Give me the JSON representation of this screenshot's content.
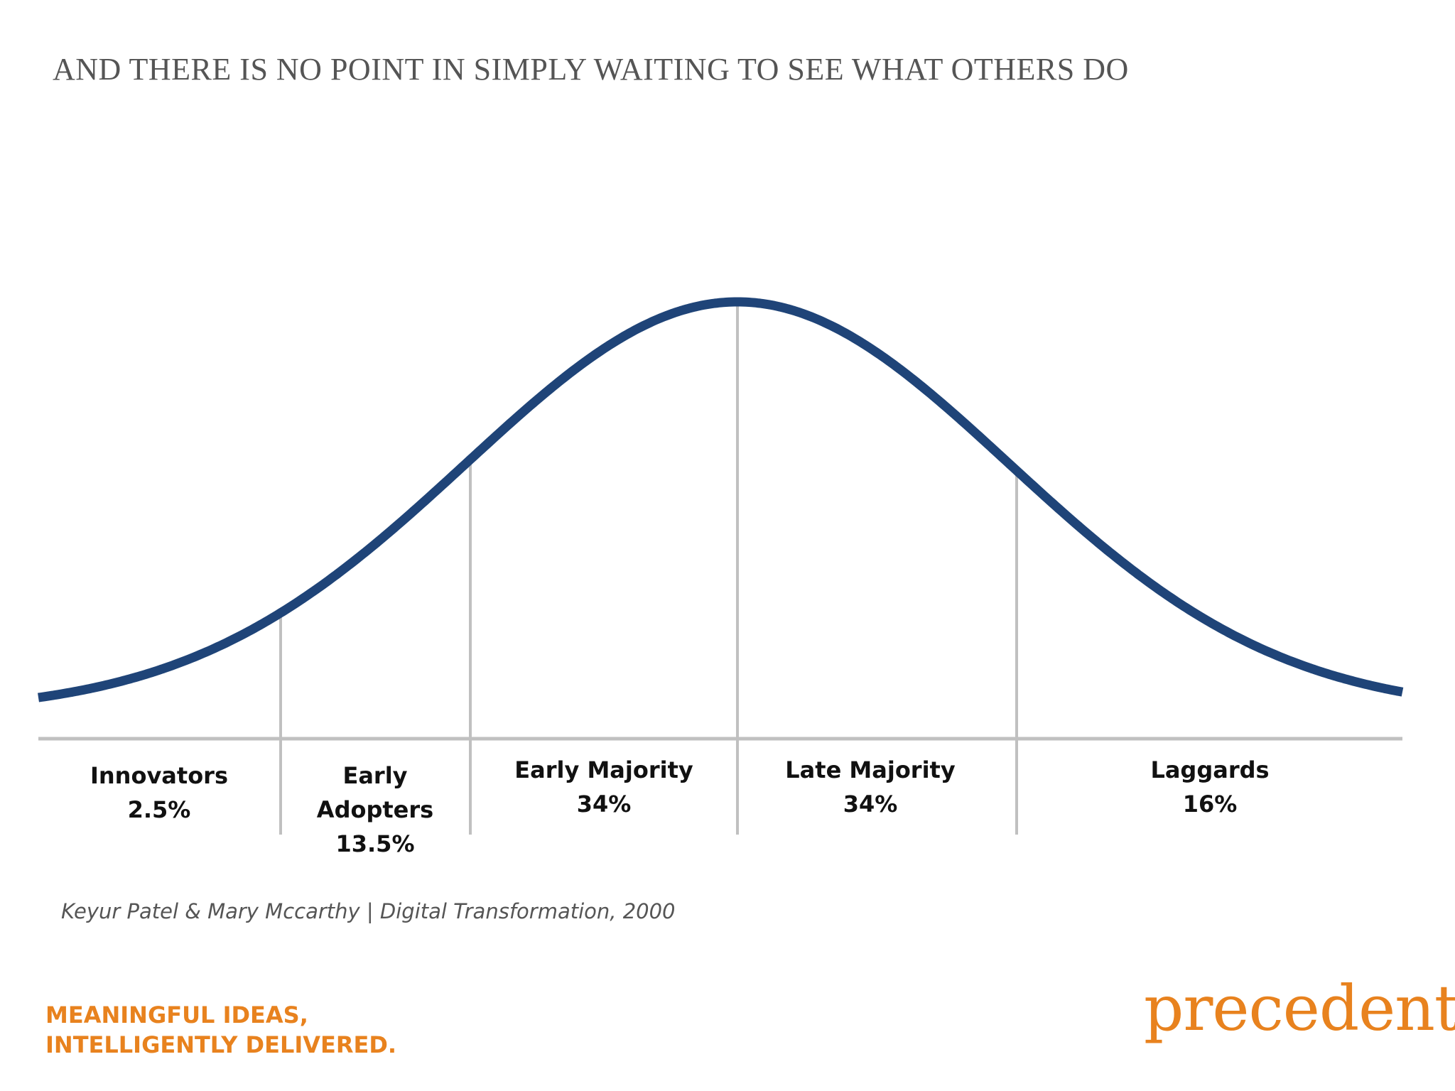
{
  "slide": {
    "title": "AND THERE IS NO POINT IN SIMPLY WAITING TO SEE WHAT OTHERS DO",
    "citation": "Keyur Patel & Mary Mccarthy | Digital Transformation, 2000",
    "tagline_line1": "MEANINGFUL IDEAS,",
    "tagline_line2": "INTELLIGENTLY DELIVERED.",
    "logo_text": "precedent."
  },
  "diagram": {
    "type": "bell-curve",
    "segments": [
      {
        "name": "Innovators",
        "name_line2": "",
        "share": "2.5%"
      },
      {
        "name": "Early",
        "name_line2": "Adopters",
        "share": "13.5%"
      },
      {
        "name": "Early Majority",
        "name_line2": "",
        "share": "34%"
      },
      {
        "name": "Late Majority",
        "name_line2": "",
        "share": "34%"
      },
      {
        "name": "Laggards",
        "name_line2": "",
        "share": "16%"
      }
    ]
  },
  "colors": {
    "curve": "#1f4478",
    "divider": "#c0c0c0",
    "title": "#555555",
    "accent": "#e8821e"
  }
}
